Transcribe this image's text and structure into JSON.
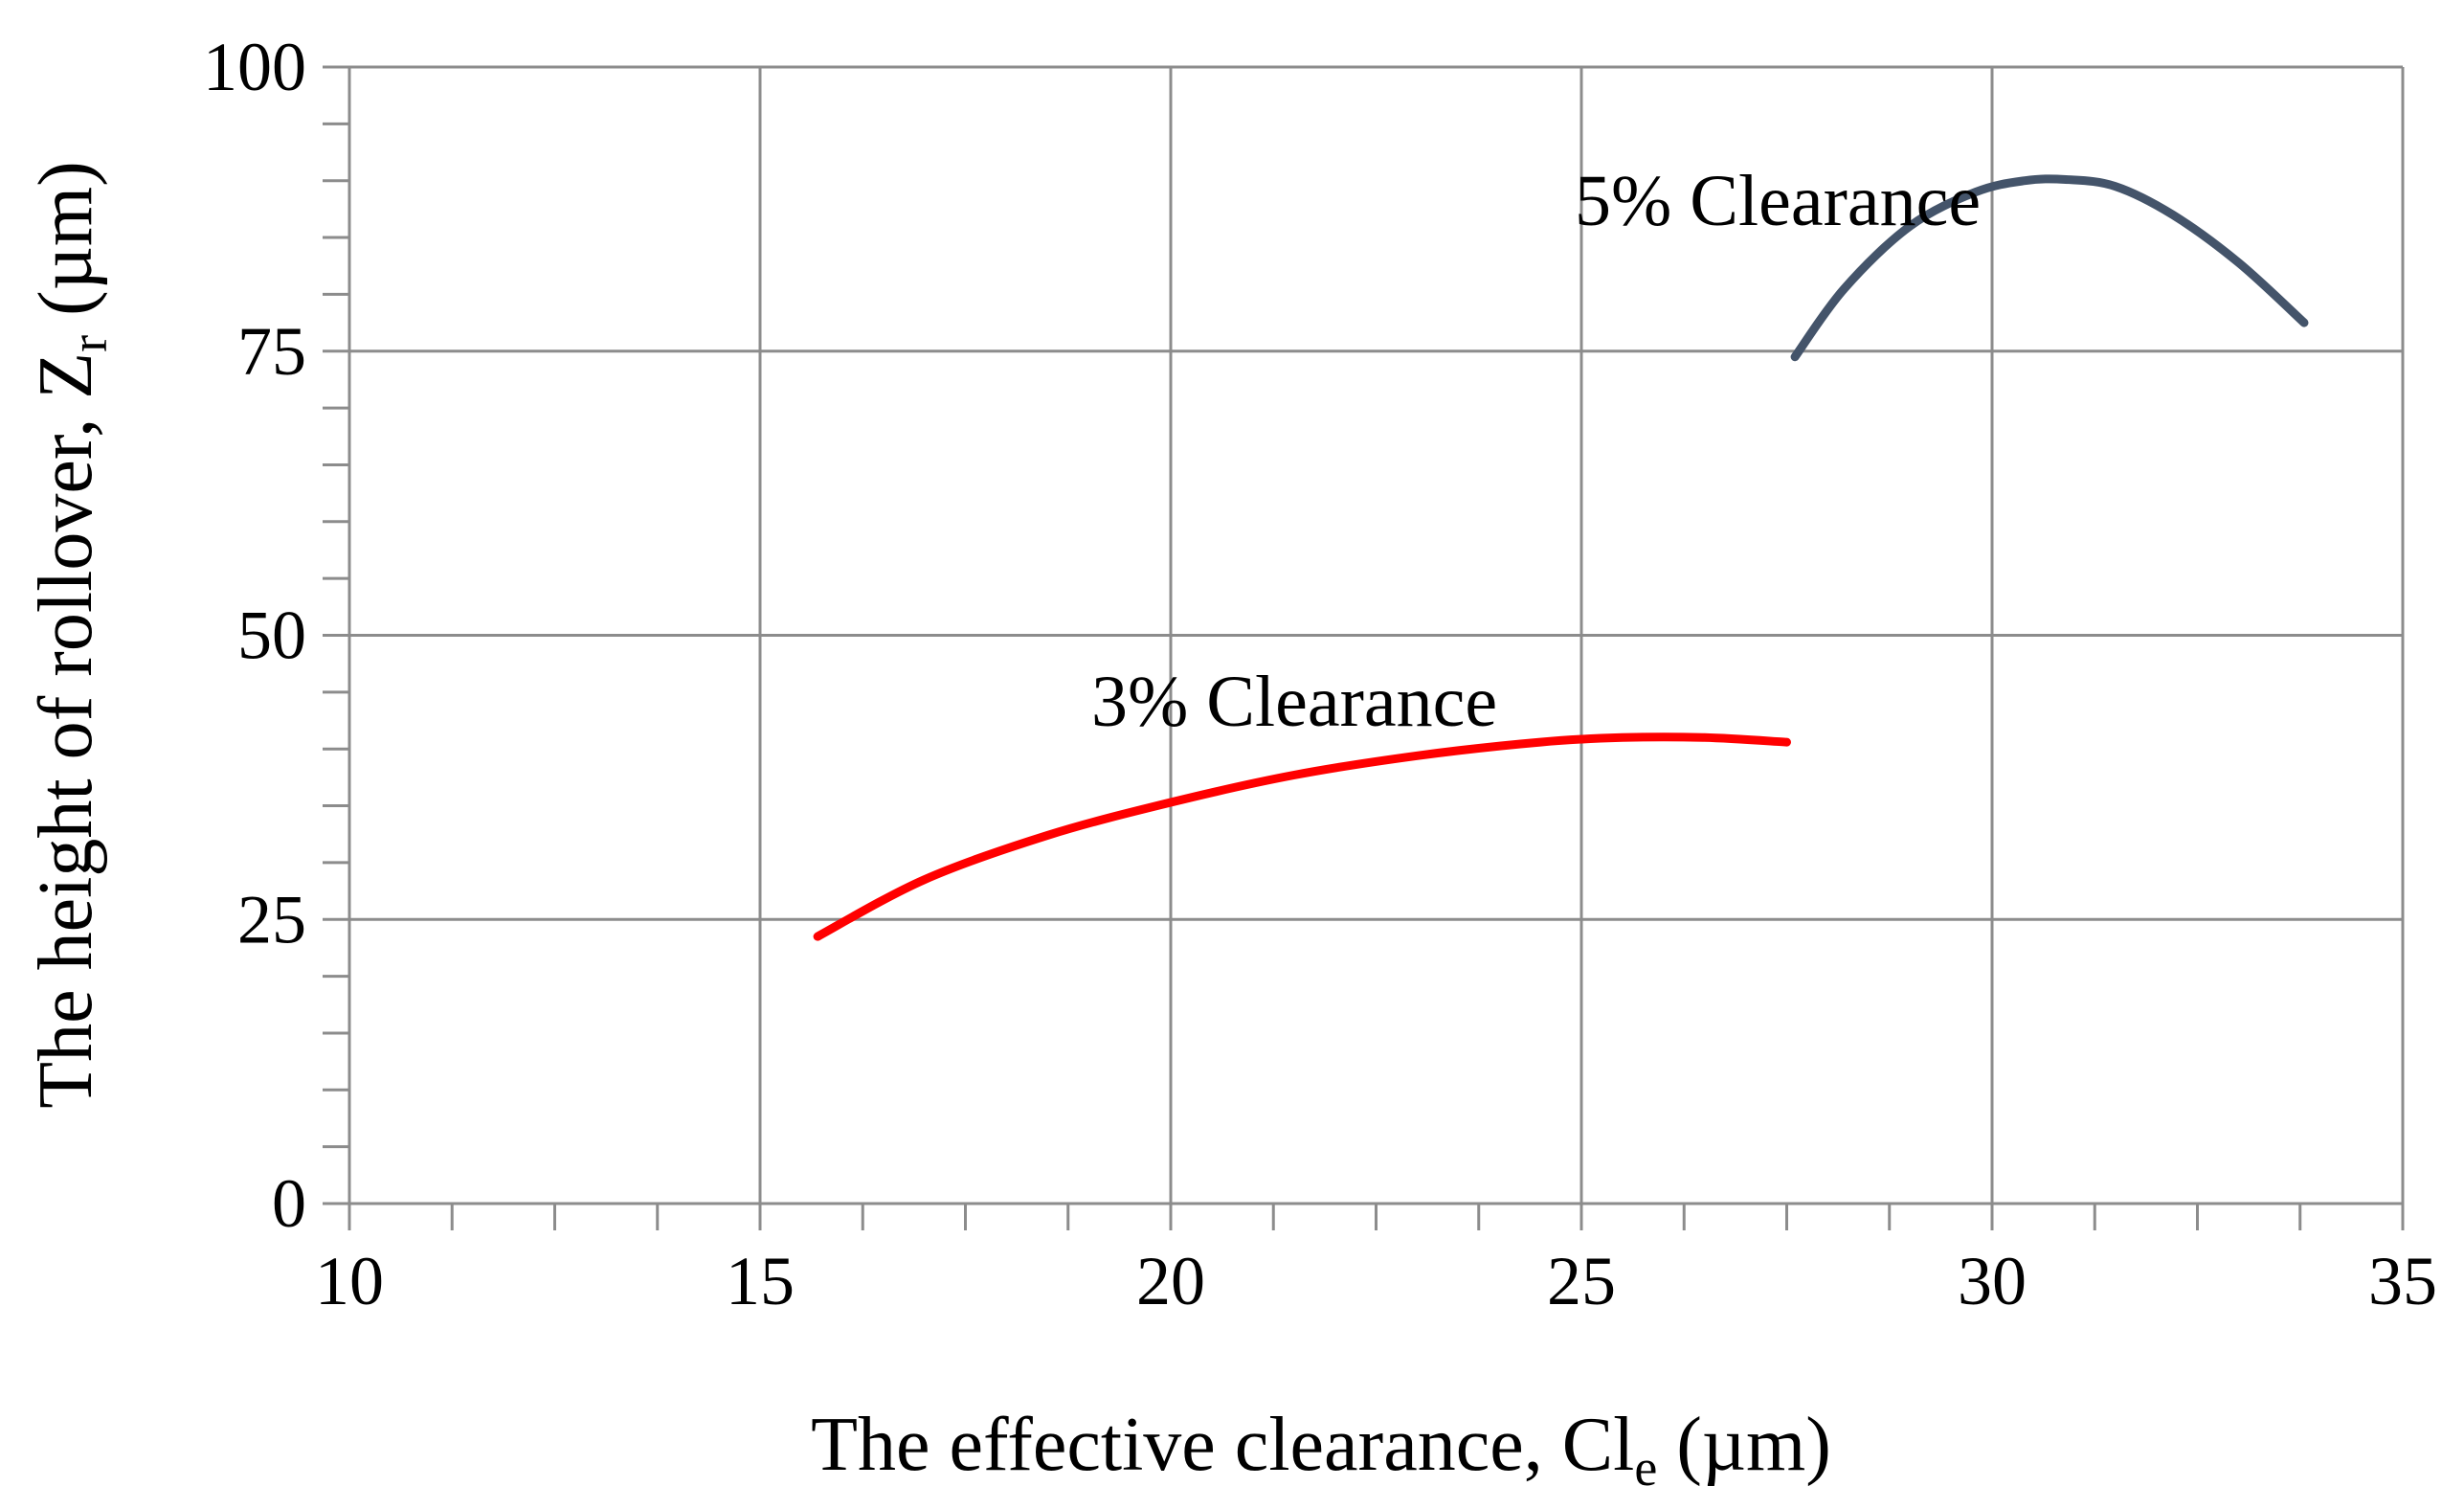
{
  "chart_data": {
    "type": "line",
    "x_axis": {
      "label_main": "The effective clearance, Cl",
      "label_sub": "e",
      "label_unit": " (µm)",
      "lim": [
        10,
        35
      ],
      "ticks": [
        10,
        15,
        20,
        25,
        30,
        35
      ],
      "minor_step": 1.25
    },
    "y_axis": {
      "label_main": "The height of rollover, Z",
      "label_sub": "r",
      "label_unit": " (µm)",
      "lim": [
        0,
        100
      ],
      "ticks": [
        0,
        25,
        50,
        75,
        100
      ],
      "minor_step": 5
    },
    "grid": true,
    "series": [
      {
        "name": "3% Clearance",
        "color": "#ff0000",
        "x": [
          15.7,
          17,
          18.5,
          20,
          21.5,
          23,
          24.5,
          25.5,
          26.5,
          27.5
        ],
        "y": [
          23.5,
          28.5,
          32.4,
          35.3,
          37.7,
          39.4,
          40.6,
          41.0,
          41.0,
          40.6
        ]
      },
      {
        "name": "5% Clearance",
        "color": "#44546a",
        "x": [
          27.6,
          28.2,
          29,
          29.8,
          30.4,
          30.9,
          31.5,
          32.2,
          33,
          33.8
        ],
        "y": [
          74.5,
          80.5,
          86.0,
          89.0,
          90.0,
          90.1,
          89.5,
          87.0,
          82.8,
          77.5
        ]
      }
    ],
    "annotations": [
      {
        "text": "5% Clearance",
        "x": 21.8,
        "y": 88.5
      },
      {
        "text": "3% Clearance",
        "x": 19.0,
        "y": 88.5
      }
    ]
  }
}
